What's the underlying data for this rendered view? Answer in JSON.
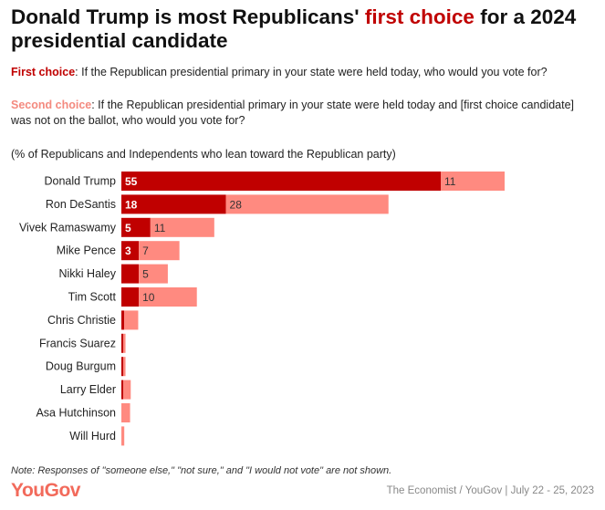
{
  "title": {
    "part1": "Donald Trump is most Republicans' ",
    "highlight": "first choice",
    "part2": " for a 2024 presidential candidate"
  },
  "questions": [
    {
      "label": "First choice",
      "text": ": If the Republican presidential primary in your state were held today, who would you vote for?"
    },
    {
      "label": "Second choice",
      "text": ": If the Republican presidential primary in your state were held today and [first choice candidate] was not on the ballot, who would you vote for?"
    }
  ],
  "subtitle": "(% of Republicans and Independents who lean toward the Republican party)",
  "note": "Note: Responses of \"someone else,\" \"not sure,\" and \"I would not vote\" are not shown.",
  "logo": "YouGov",
  "source": "The Economist / YouGov | July 22 - 25, 2023",
  "colors": {
    "first": "#c00000",
    "second": "#ff8a80"
  },
  "chart_data": {
    "type": "bar",
    "orientation": "horizontal",
    "stacked": true,
    "categories": [
      "Donald Trump",
      "Ron DeSantis",
      "Vivek Ramaswamy",
      "Mike Pence",
      "Nikki Haley",
      "Tim Scott",
      "Chris Christie",
      "Francis Suarez",
      "Doug Burgum",
      "Larry Elder",
      "Asa Hutchinson",
      "Will Hurd"
    ],
    "series": [
      {
        "name": "First choice",
        "values": [
          55,
          18,
          5,
          3,
          3,
          3,
          0.5,
          0.3,
          0.3,
          0.3,
          0,
          0
        ],
        "labels": [
          "55",
          "18",
          "5",
          "3",
          "",
          "",
          "",
          "",
          "",
          "",
          "",
          ""
        ]
      },
      {
        "name": "Second choice",
        "values": [
          11,
          28,
          11,
          7,
          5,
          10,
          2.4,
          0.4,
          0.4,
          1.3,
          1.5,
          0.5
        ],
        "labels": [
          "11",
          "28",
          "11",
          "7",
          "5",
          "10",
          "",
          "",
          "",
          "",
          "",
          ""
        ]
      }
    ],
    "xlim": [
      0,
      75
    ]
  }
}
